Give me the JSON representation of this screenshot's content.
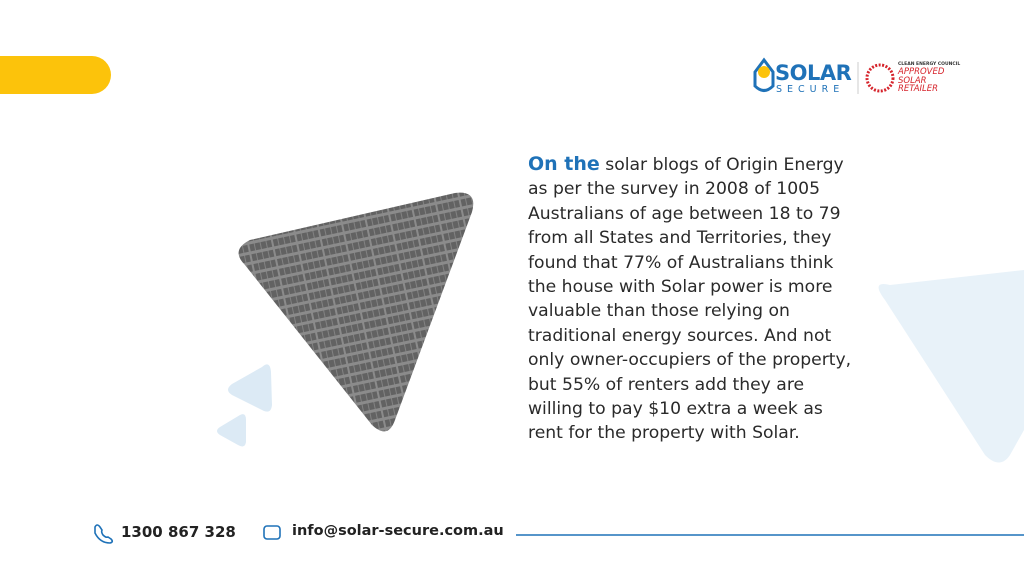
{
  "logo": {
    "name": "SOLAR",
    "sub": "SECURE"
  },
  "badge": {
    "org": "CLEAN ENERGY COUNCIL",
    "line1": "APPROVED",
    "line2": "SOLAR",
    "line3": "RETAILER"
  },
  "body": {
    "lead": "On the",
    "text": "solar blogs of Origin Energy as per the survey in 2008 of 1005 Australians of age between 18 to 79 from all States and Territories, they found that 77% of Australians think the house with Solar power is more valuable than those relying on traditional energy sources. And not only owner-occupiers of the property, but 55% of renters add they are willing to pay $10 extra a week as rent for the property with Solar."
  },
  "footer": {
    "phone": "1300 867 328",
    "email": "info@solar-secure.com.au"
  }
}
